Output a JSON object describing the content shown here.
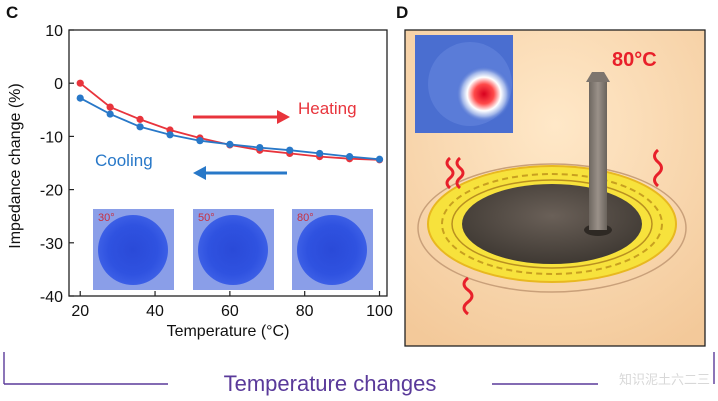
{
  "figure": {
    "caption": "Temperature changes",
    "watermark": "知识泥土六二三"
  },
  "chart_data": {
    "panel": "C",
    "type": "line",
    "xlabel": "Temperature (°C)",
    "ylabel": "Impedance change (%)",
    "xlim": [
      17,
      102
    ],
    "ylim": [
      -40,
      10
    ],
    "xticks": [
      20,
      40,
      60,
      80,
      100
    ],
    "yticks": [
      10,
      0,
      -10,
      -20,
      -30,
      -40
    ],
    "grid": false,
    "series": [
      {
        "name": "Heating",
        "color": "#e8343c",
        "x": [
          20,
          28,
          36,
          44,
          52,
          60,
          68,
          76,
          84,
          92,
          100
        ],
        "y": [
          0,
          -4.5,
          -6.8,
          -8.8,
          -10.3,
          -11.6,
          -12.6,
          -13.2,
          -13.8,
          -14.2,
          -14.4
        ]
      },
      {
        "name": "Cooling",
        "color": "#2878c8",
        "x": [
          20,
          28,
          36,
          44,
          52,
          60,
          68,
          76,
          84,
          92,
          100
        ],
        "y": [
          -2.8,
          -5.8,
          -8.2,
          -9.7,
          -10.8,
          -11.5,
          -12.1,
          -12.6,
          -13.2,
          -13.8,
          -14.3
        ]
      }
    ],
    "annotations": [
      {
        "text": "Heating",
        "color": "#e8343c"
      },
      {
        "text": "Cooling",
        "color": "#2878c8"
      }
    ],
    "insets": [
      {
        "label": "30°"
      },
      {
        "label": "50°"
      },
      {
        "label": "80°"
      }
    ]
  },
  "panel_d": {
    "panel": "D",
    "temperature_label": "80°C"
  }
}
